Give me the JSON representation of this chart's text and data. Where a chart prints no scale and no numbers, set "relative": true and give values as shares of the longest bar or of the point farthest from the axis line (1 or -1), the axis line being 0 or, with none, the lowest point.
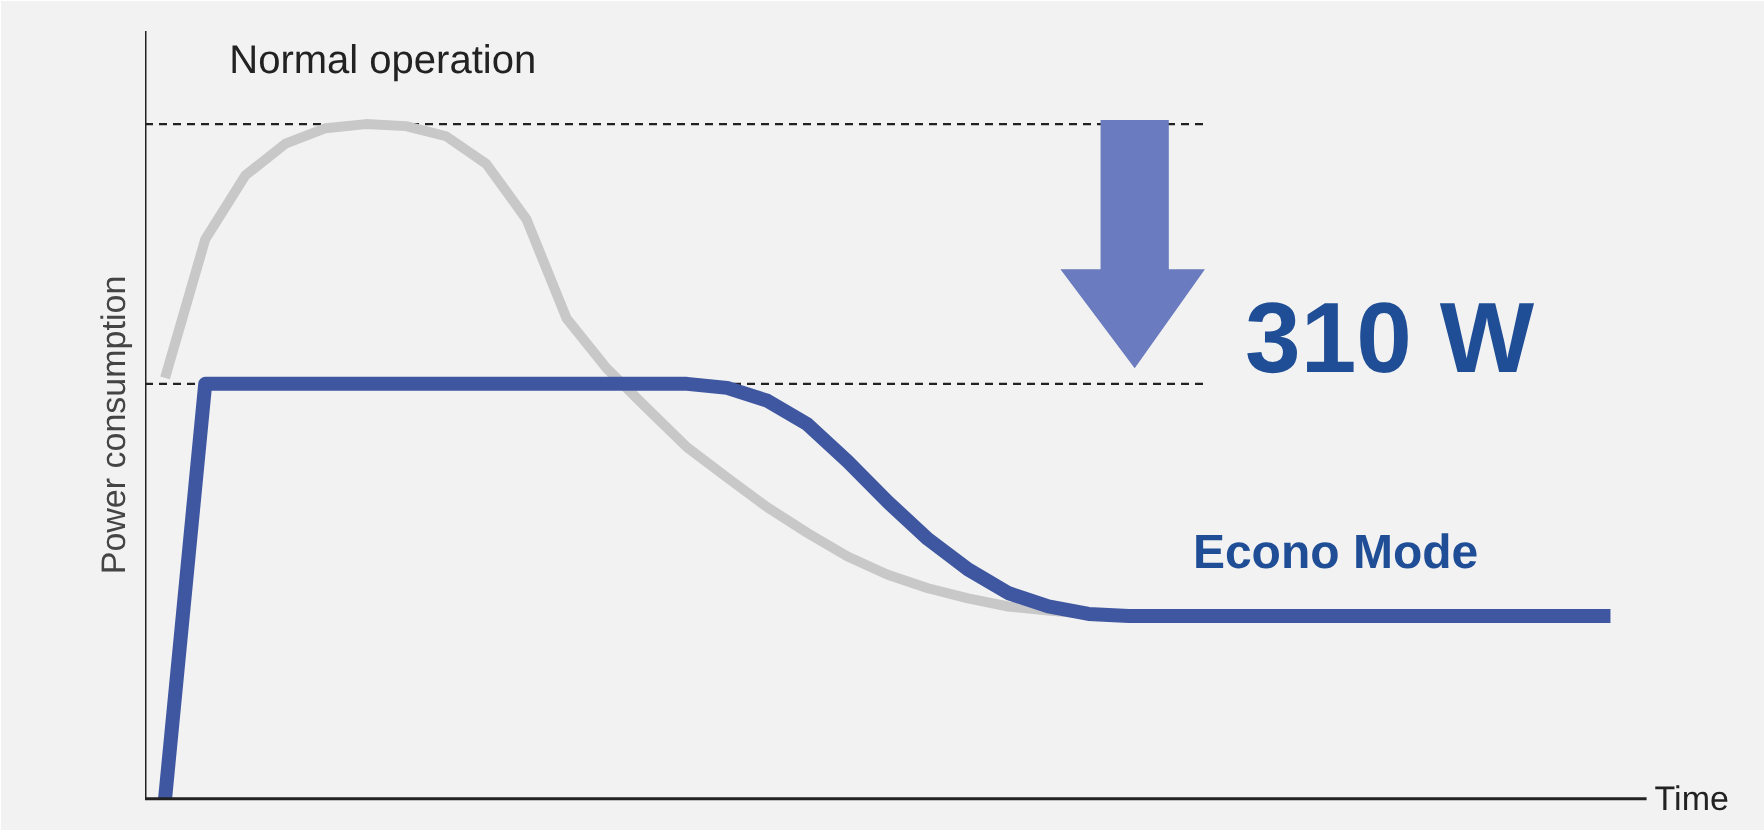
{
  "chart_data": {
    "type": "line",
    "relative": true,
    "xlabel": "Time",
    "ylabel": "Power consumption",
    "categories": [
      null,
      null,
      null,
      null,
      null,
      null,
      null,
      null,
      null,
      null,
      null,
      null,
      null,
      null,
      null,
      null,
      null,
      null,
      null,
      null,
      null,
      null,
      null,
      null,
      null,
      null,
      null,
      null,
      null,
      null,
      null,
      null,
      null,
      null,
      null,
      null,
      null
    ],
    "series": [
      {
        "name": "Normal operation",
        "color": "#c8c8c8",
        "values": [
          0.624,
          0.829,
          0.924,
          0.971,
          0.994,
          1,
          0.997,
          0.982,
          0.941,
          0.859,
          0.712,
          0.638,
          0.579,
          0.521,
          0.476,
          0.432,
          0.394,
          0.359,
          0.332,
          0.312,
          0.297,
          0.285,
          0.279,
          0.274,
          null,
          null,
          null,
          null,
          null,
          null,
          null,
          null,
          null,
          null,
          null,
          null,
          null
        ]
      },
      {
        "name": "Econo Mode",
        "color": "#3f57a0",
        "values": [
          0,
          0.615,
          0.615,
          0.615,
          0.615,
          0.615,
          0.615,
          0.615,
          0.615,
          0.615,
          0.615,
          0.615,
          0.615,
          0.615,
          0.609,
          0.59,
          0.555,
          0.5,
          0.44,
          0.385,
          0.34,
          0.305,
          0.285,
          0.274,
          0.271,
          0.271,
          0.271,
          0.271,
          0.271,
          0.271,
          0.271,
          0.271,
          0.271,
          0.271,
          0.271,
          0.271,
          0.271
        ]
      }
    ],
    "ref_lines": [
      {
        "axis": "y",
        "value": 1,
        "color": "#222222",
        "line_style": "dashed"
      },
      {
        "axis": "y",
        "value": 0.615,
        "color": "#222222",
        "line_style": "dashed"
      }
    ],
    "annotations": [
      "310 W"
    ],
    "grid": false,
    "marker": "none",
    "line_style": "solid"
  }
}
